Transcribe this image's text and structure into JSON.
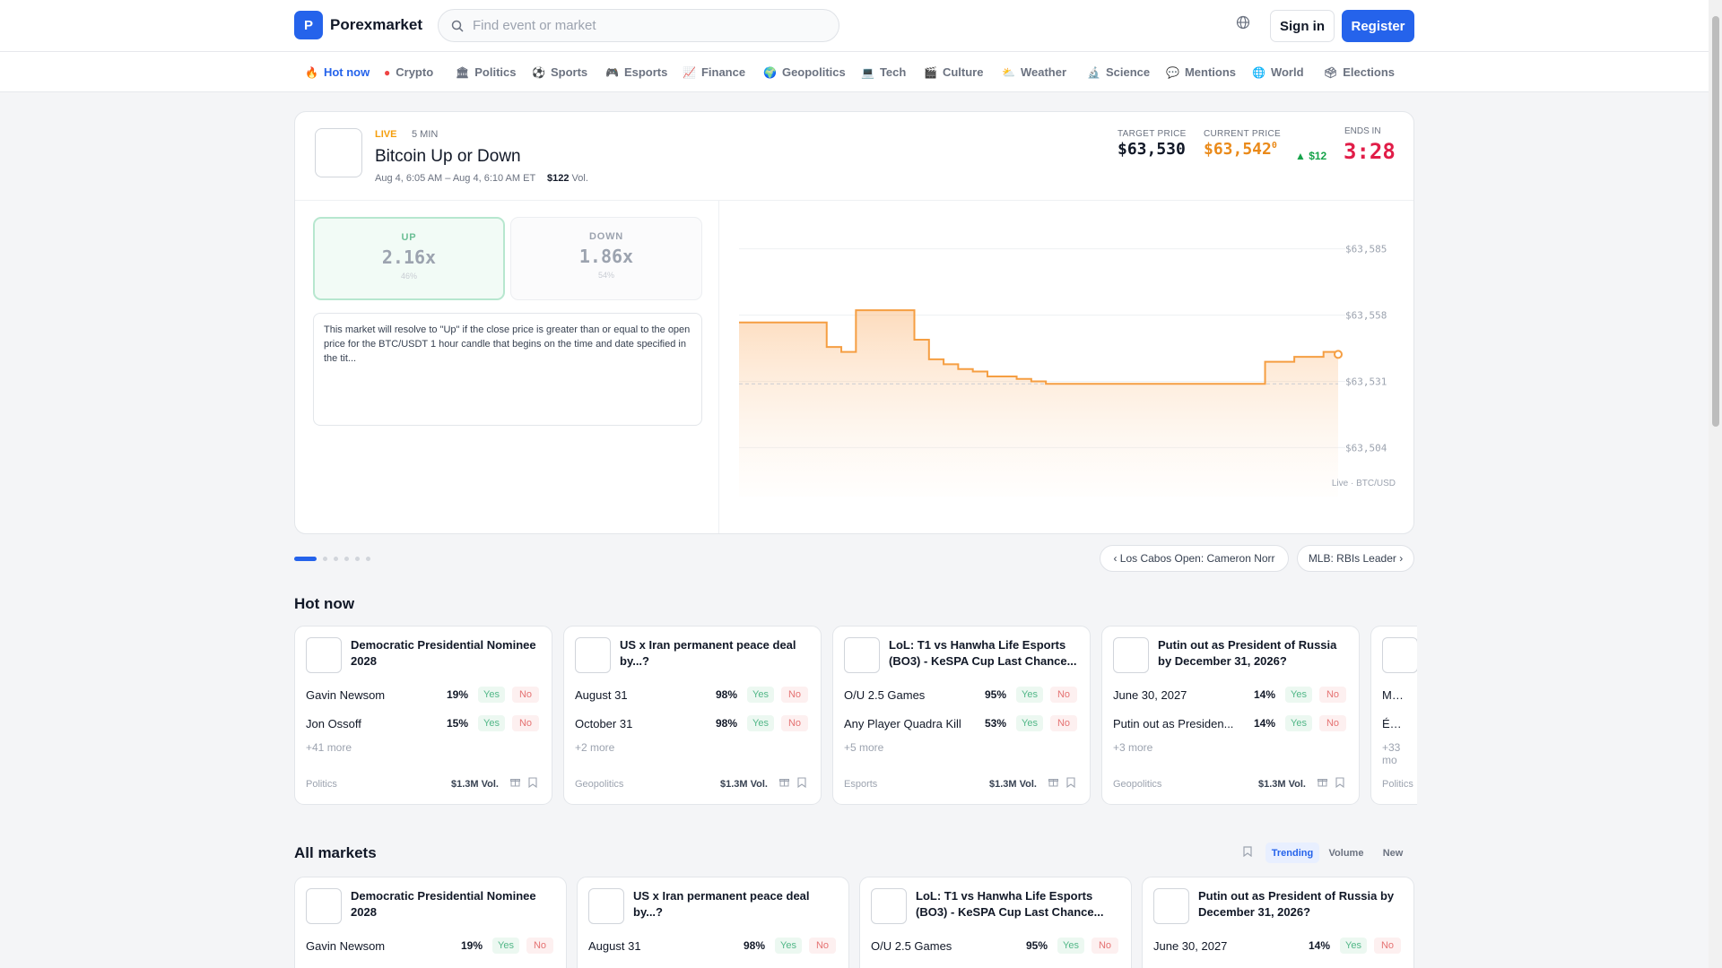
{
  "header": {
    "logo_letter": "P",
    "brand": "Porexmarket",
    "search_placeholder": "Find event or market",
    "globe_icon": "globe-icon",
    "sign_in": "Sign in",
    "register": "Register"
  },
  "categories": [
    {
      "icon": "🔥",
      "label": "Hot now",
      "active": true
    },
    {
      "icon": "●",
      "label": "Crypto"
    },
    {
      "icon": "🏛",
      "label": "Politics"
    },
    {
      "icon": "⚽",
      "label": "Sports"
    },
    {
      "icon": "🎮",
      "label": "Esports"
    },
    {
      "icon": "📈",
      "label": "Finance"
    },
    {
      "icon": "🌍",
      "label": "Geopolitics"
    },
    {
      "icon": "💻",
      "label": "Tech"
    },
    {
      "icon": "🎬",
      "label": "Culture"
    },
    {
      "icon": "⛅",
      "label": "Weather"
    },
    {
      "icon": "🔬",
      "label": "Science"
    },
    {
      "icon": "💬",
      "label": "Mentions"
    },
    {
      "icon": "🌐",
      "label": "World"
    },
    {
      "icon": "🗳",
      "label": "Elections"
    }
  ],
  "hero": {
    "live": "LIVE",
    "interval": "5 MIN",
    "title": "Bitcoin Up or Down",
    "time_range": "Aug 4, 6:05 AM – Aug 4, 6:10 AM ET",
    "volume": "$122",
    "volume_suffix": "Vol.",
    "target_label": "TARGET PRICE",
    "target_price": "$63,530",
    "current_label": "CURRENT PRICE",
    "current_price": "$63,542",
    "current_superscript": "0",
    "delta": "▲ $12",
    "ends_label": "ENDS IN",
    "countdown": "3:28",
    "up": {
      "label": "UP",
      "multiplier": "2.16x",
      "percent": "46%"
    },
    "down": {
      "label": "DOWN",
      "multiplier": "1.86x",
      "percent": "54%"
    },
    "description": "This market will resolve to \"Up\" if the close price is greater than or equal to the open price for the BTC/USDT 1 hour candle that begins on the time and date specified in the tit...",
    "chart_caption": "Live · BTC/USD"
  },
  "chart_data": {
    "type": "area",
    "title": "",
    "xlabel": "",
    "ylabel": "",
    "y_ticks": [
      "$63,585",
      "$63,558",
      "$63,531",
      "$63,504"
    ],
    "ylim": [
      63495,
      63590
    ],
    "reference_line": 63530,
    "color": "#f59e42",
    "x": [
      0,
      1,
      2,
      3,
      4,
      5,
      6,
      7,
      8,
      9,
      10,
      11,
      12,
      13,
      14,
      15,
      16,
      17,
      18,
      19,
      20,
      21,
      22,
      23,
      24,
      25,
      26,
      27,
      28,
      29,
      30,
      31,
      32,
      33,
      34,
      35,
      36,
      37,
      38,
      39,
      40,
      41
    ],
    "values": [
      63555,
      63555,
      63555,
      63555,
      63555,
      63555,
      63545,
      63543,
      63560,
      63560,
      63560,
      63560,
      63548,
      63540,
      63538,
      63536,
      63535,
      63533,
      63533,
      63532,
      63531,
      63530,
      63530,
      63530,
      63530,
      63530,
      63530,
      63530,
      63530,
      63530,
      63530,
      63530,
      63530,
      63530,
      63530,
      63530,
      63539,
      63539,
      63541,
      63541,
      63543,
      63542
    ]
  },
  "carousel": {
    "prev_label": "‹ Los Cabos Open: Cameron Norr",
    "next_label": "MLB: RBIs Leader ›",
    "dot_count": 6,
    "active_dot": 0
  },
  "hot_now": {
    "title": "Hot now",
    "cards": [
      {
        "title": "Democratic Presidential Nominee 2028",
        "rows": [
          {
            "name": "Gavin Newsom",
            "pct": "19%"
          },
          {
            "name": "Jon Ossoff",
            "pct": "15%"
          }
        ],
        "more": "+41 more",
        "category": "Politics",
        "volume": "$1.3M Vol."
      },
      {
        "title": "US x Iran permanent peace deal by...?",
        "rows": [
          {
            "name": "August 31",
            "pct": "98%"
          },
          {
            "name": "October 31",
            "pct": "98%"
          }
        ],
        "more": "+2 more",
        "category": "Geopolitics",
        "volume": "$1.3M Vol."
      },
      {
        "title": "LoL: T1 vs Hanwha Life Esports (BO3) - KeSPA Cup Last Chance...",
        "rows": [
          {
            "name": "O/U 2.5 Games",
            "pct": "95%"
          },
          {
            "name": "Any Player Quadra Kill",
            "pct": "53%"
          }
        ],
        "more": "+5 more",
        "category": "Esports",
        "volume": "$1.3M Vol."
      },
      {
        "title": "Putin out as President of Russia by December 31, 2026?",
        "rows": [
          {
            "name": "June 30, 2027",
            "pct": "14%"
          },
          {
            "name": "Putin out as Presiden...",
            "pct": "14%"
          }
        ],
        "more": "+3 more",
        "category": "Geopolitics",
        "volume": "$1.3M Vol."
      },
      {
        "title": "",
        "rows": [
          {
            "name": "Marine",
            "pct": ""
          },
          {
            "name": "Édoua",
            "pct": ""
          }
        ],
        "more": "+33 mo",
        "category": "Politics",
        "volume": ""
      }
    ],
    "yes": "Yes",
    "no": "No"
  },
  "all_markets": {
    "title": "All markets",
    "sort_tabs": [
      "Trending",
      "Volume",
      "New"
    ],
    "active_sort": "Trending",
    "cards": [
      {
        "title": "Democratic Presidential Nominee 2028",
        "row": {
          "name": "Gavin Newsom",
          "pct": "19%"
        }
      },
      {
        "title": "US x Iran permanent peace deal by...?",
        "row": {
          "name": "August 31",
          "pct": "98%"
        }
      },
      {
        "title": "LoL: T1 vs Hanwha Life Esports (BO3) - KeSPA Cup Last Chance...",
        "row": {
          "name": "O/U 2.5 Games",
          "pct": "95%"
        }
      },
      {
        "title": "Putin out as President of Russia by December 31, 2026?",
        "row": {
          "name": "June 30, 2027",
          "pct": "14%"
        }
      }
    ]
  },
  "colors": {
    "accent": "#2563eb",
    "live": "#f59e0b",
    "countdown": "#e11d48",
    "up": "#16a34a",
    "price": "#ea8a1a"
  }
}
